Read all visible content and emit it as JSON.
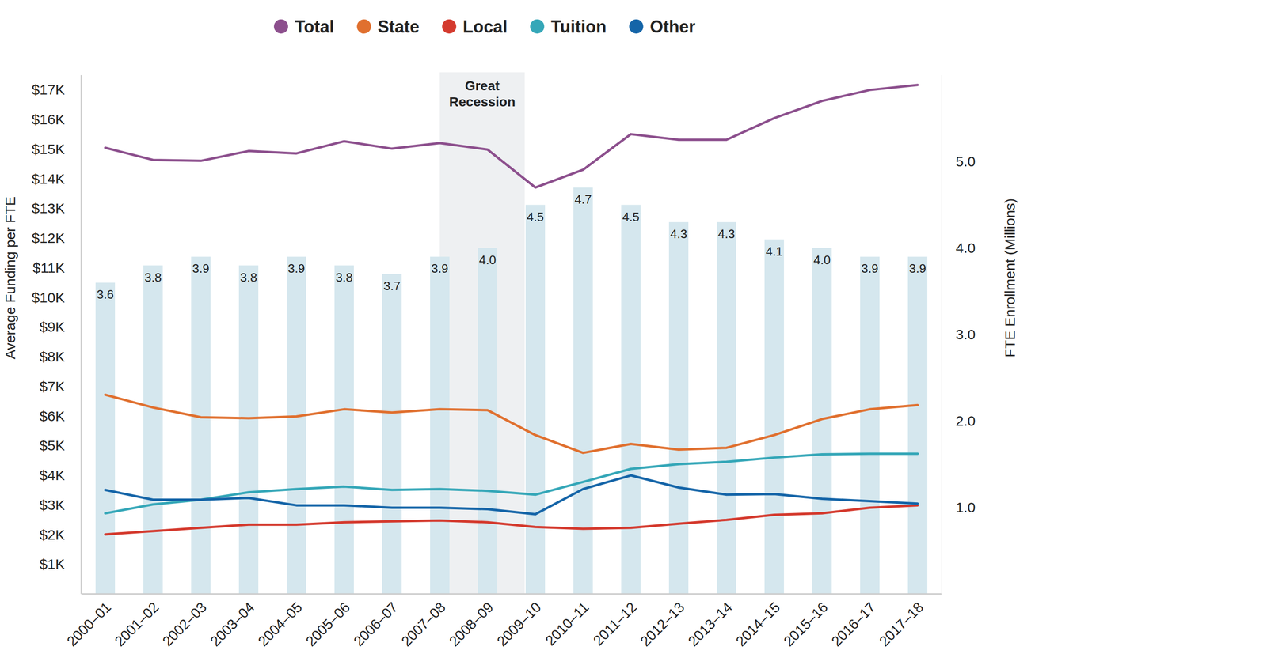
{
  "chart_data": {
    "type": "line",
    "categories": [
      "2000–01",
      "2001–02",
      "2002–03",
      "2003–04",
      "2004–05",
      "2005–06",
      "2006–07",
      "2007–08",
      "2008–09",
      "2009–10",
      "2010–11",
      "2011–12",
      "2012–13",
      "2013–14",
      "2014–15",
      "2015–16",
      "2016–17",
      "2017–18"
    ],
    "y_label": "Average Funding per FTE",
    "y2_label": "FTE Enrollment (Millions)",
    "ylim": [
      0,
      17500
    ],
    "yticks": [
      {
        "value": 1000,
        "label": "$1K"
      },
      {
        "value": 2000,
        "label": "$2K"
      },
      {
        "value": 3000,
        "label": "$3K"
      },
      {
        "value": 4000,
        "label": "$4K"
      },
      {
        "value": 5000,
        "label": "$5K"
      },
      {
        "value": 6000,
        "label": "$6K"
      },
      {
        "value": 7000,
        "label": "$7K"
      },
      {
        "value": 8000,
        "label": "$8K"
      },
      {
        "value": 9000,
        "label": "$9K"
      },
      {
        "value": 10000,
        "label": "$10K"
      },
      {
        "value": 11000,
        "label": "$11K"
      },
      {
        "value": 12000,
        "label": "$12K"
      },
      {
        "value": 13000,
        "label": "$13K"
      },
      {
        "value": 14000,
        "label": "$14K"
      },
      {
        "value": 15000,
        "label": "$15K"
      },
      {
        "value": 16000,
        "label": "$16K"
      },
      {
        "value": 17000,
        "label": "$17K"
      }
    ],
    "y2lim": [
      0,
      6
    ],
    "y2ticks": [
      {
        "value": 1,
        "label": "1.0"
      },
      {
        "value": 2,
        "label": "2.0"
      },
      {
        "value": 3,
        "label": "3.0"
      },
      {
        "value": 4,
        "label": "4.0"
      },
      {
        "value": 5,
        "label": "5.0"
      }
    ],
    "grid": false,
    "legend": "top",
    "annotations": [
      {
        "text": "Great Recession",
        "from": "2007–08",
        "to": "2009–10"
      }
    ],
    "series": [
      {
        "type": "bar",
        "axis": "y2",
        "color": "#d5e7ee",
        "data_labels": true,
        "values": [
          3.6,
          3.8,
          3.9,
          3.8,
          3.9,
          3.8,
          3.7,
          3.9,
          4.0,
          4.5,
          4.7,
          4.5,
          4.3,
          4.3,
          4.1,
          4.0,
          3.9,
          3.9
        ],
        "value_labels": [
          "3.6",
          "3.8",
          "3.9",
          "3.8",
          "3.9",
          "3.8",
          "3.7",
          "3.9",
          "4.0",
          "4.5",
          "4.7",
          "4.5",
          "4.3",
          "4.3",
          "4.1",
          "4.0",
          "3.9",
          "3.9"
        ]
      },
      {
        "name": "Total",
        "type": "line",
        "color": "#8c4f8d",
        "values": [
          15050,
          14640,
          14610,
          14940,
          14860,
          15270,
          15020,
          15210,
          14990,
          13710,
          14310,
          15510,
          15320,
          15320,
          16050,
          16630,
          17000,
          17170
        ]
      },
      {
        "name": "State",
        "type": "line",
        "color": "#e0702f",
        "values": [
          6720,
          6290,
          5960,
          5930,
          5990,
          6230,
          6120,
          6230,
          6200,
          5360,
          4760,
          5060,
          4870,
          4930,
          5360,
          5900,
          6230,
          6370
        ]
      },
      {
        "name": "Local",
        "type": "line",
        "color": "#d43a2e",
        "values": [
          2010,
          2120,
          2230,
          2340,
          2340,
          2420,
          2450,
          2480,
          2420,
          2260,
          2200,
          2230,
          2370,
          2500,
          2670,
          2720,
          2910,
          2990
        ]
      },
      {
        "name": "Tuition",
        "type": "line",
        "color": "#35a7b8",
        "values": [
          2720,
          3020,
          3180,
          3430,
          3540,
          3620,
          3510,
          3540,
          3480,
          3350,
          3780,
          4220,
          4380,
          4460,
          4600,
          4710,
          4730,
          4730
        ]
      },
      {
        "name": "Other",
        "type": "line",
        "color": "#1565a8",
        "values": [
          3510,
          3180,
          3180,
          3240,
          2990,
          2990,
          2910,
          2910,
          2860,
          2690,
          3540,
          4000,
          3590,
          3350,
          3370,
          3210,
          3130,
          3050
        ]
      }
    ]
  }
}
